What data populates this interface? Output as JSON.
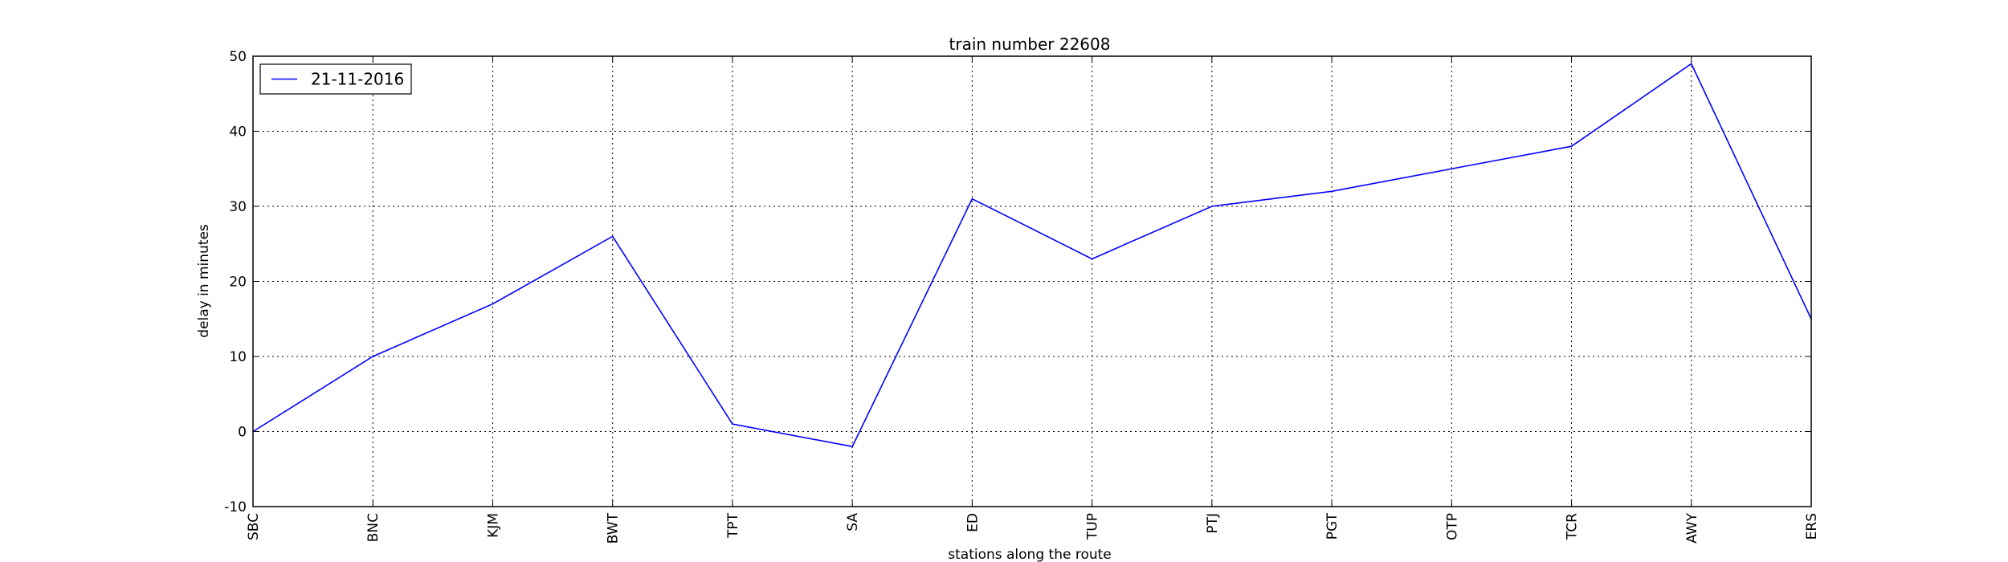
{
  "chart_data": {
    "type": "line",
    "title": "train number 22608",
    "xlabel": "stations along the route",
    "ylabel": "delay in minutes",
    "categories": [
      "SBC",
      "BNC",
      "KJM",
      "BWT",
      "TPT",
      "SA",
      "ED",
      "TUP",
      "PTJ",
      "PGT",
      "OTP",
      "TCR",
      "AWY",
      "ERS"
    ],
    "series": [
      {
        "name": "21-11-2016",
        "color": "#0000ff",
        "values": [
          0,
          10,
          17,
          26,
          1,
          -2,
          31,
          23,
          30,
          32,
          35,
          38,
          49,
          15
        ]
      }
    ],
    "ylim": [
      -10,
      50
    ],
    "yticks": [
      -10,
      0,
      10,
      20,
      30,
      40,
      50
    ],
    "grid": true,
    "legend_position": "top-left"
  }
}
